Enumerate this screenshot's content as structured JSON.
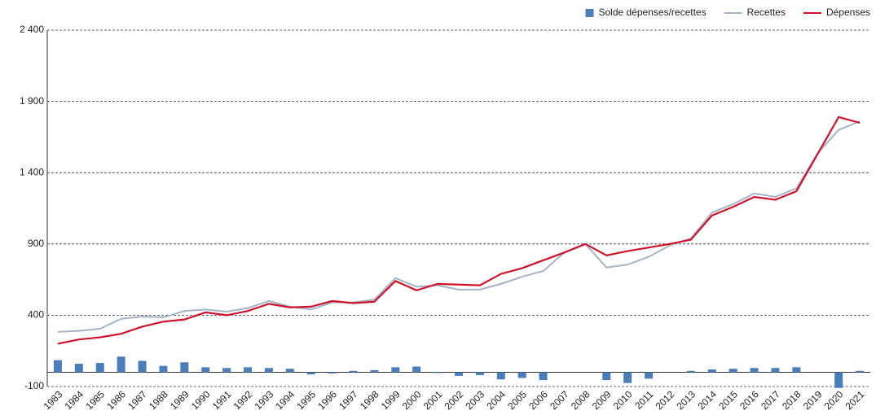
{
  "chart_data": {
    "type": "bar-line",
    "categories": [
      "1983",
      "1984",
      "1985",
      "1986",
      "1987",
      "1988",
      "1989",
      "1990",
      "1991",
      "1992",
      "1993",
      "1994",
      "1995",
      "1996",
      "1997",
      "1998",
      "1999",
      "2000",
      "2001",
      "2002",
      "2003",
      "2004",
      "2005",
      "2006",
      "2007",
      "2008",
      "2009",
      "2010",
      "2011",
      "2012",
      "2013",
      "2014",
      "2015",
      "2016",
      "2017",
      "2018",
      "2019",
      "2020",
      "2021"
    ],
    "series": [
      {
        "name": "Solde dépenses/recettes",
        "kind": "bar",
        "color": "#4a7ebb",
        "values": [
          85,
          60,
          65,
          110,
          80,
          45,
          70,
          35,
          30,
          35,
          30,
          25,
          -15,
          -8,
          10,
          15,
          35,
          40,
          -5,
          -25,
          -20,
          -50,
          -40,
          -55,
          0,
          0,
          -55,
          -75,
          -45,
          0,
          10,
          20,
          25,
          30,
          30,
          35,
          0,
          -110,
          10
        ]
      },
      {
        "name": "Recettes",
        "kind": "line",
        "color": "#a4b4c6",
        "values": [
          283,
          290,
          305,
          375,
          390,
          385,
          430,
          440,
          425,
          450,
          500,
          460,
          440,
          490,
          490,
          510,
          660,
          600,
          610,
          580,
          580,
          620,
          670,
          710,
          840,
          900,
          735,
          755,
          810,
          890,
          940,
          1120,
          1180,
          1255,
          1230,
          1290,
          1535,
          1700,
          1760
        ]
      },
      {
        "name": "Dépenses",
        "kind": "line",
        "color": "#d0112b",
        "values": [
          200,
          230,
          245,
          270,
          320,
          355,
          370,
          420,
          400,
          430,
          480,
          455,
          460,
          500,
          485,
          495,
          640,
          575,
          620,
          615,
          610,
          690,
          730,
          785,
          840,
          900,
          820,
          850,
          875,
          900,
          930,
          1100,
          1160,
          1230,
          1210,
          1270,
          1530,
          1790,
          1750
        ]
      }
    ],
    "ylim": [
      -100,
      2400
    ],
    "yticks": [
      {
        "value": -100,
        "label": "-100"
      },
      400,
      900,
      {
        "value": 1400,
        "label": "1 400"
      },
      {
        "value": 1900,
        "label": "1 900"
      },
      {
        "value": 2400,
        "label": "2 400"
      }
    ],
    "grid": true,
    "legend": "top-right"
  }
}
